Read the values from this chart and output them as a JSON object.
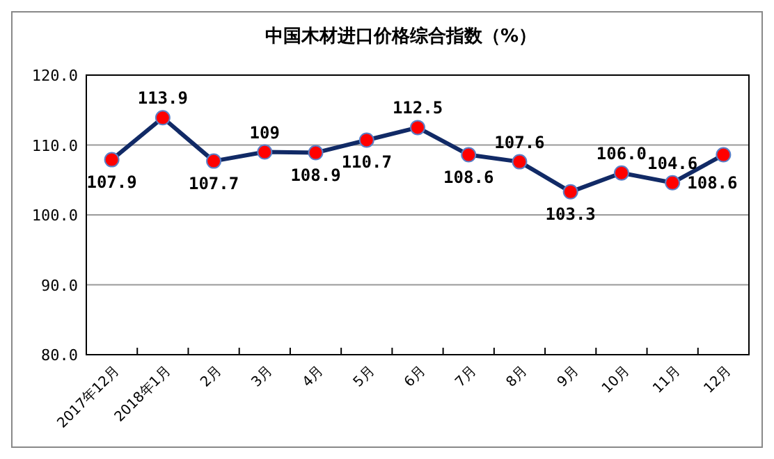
{
  "chart_data": {
    "type": "line",
    "title": "中国木材进口价格综合指数（%）",
    "categories": [
      "2017年12月",
      "2018年1月",
      "2月",
      "3月",
      "4月",
      "5月",
      "6月",
      "7月",
      "8月",
      "9月",
      "10月",
      "11月",
      "12月"
    ],
    "series": [
      {
        "color": "#112a66",
        "values": [
          107.9,
          113.9,
          107.7,
          109,
          108.9,
          110.7,
          112.5,
          108.6,
          107.6,
          103.3,
          106.0,
          104.6,
          108.6
        ],
        "value_labels": [
          "107.9",
          "113.9",
          "107.7",
          "109",
          "108.9",
          "110.7",
          "112.5",
          "108.6",
          "107.6",
          "103.3",
          "106.0",
          "104.6",
          "108.6"
        ]
      }
    ],
    "ylim": [
      80,
      120
    ],
    "yticks": [
      {
        "value": 80,
        "label": "80.0"
      },
      {
        "value": 90,
        "label": "90.0"
      },
      {
        "value": 100,
        "label": "100.0"
      },
      {
        "value": 110,
        "label": "110.0"
      },
      {
        "value": 120,
        "label": "120.0"
      }
    ],
    "grid": "y",
    "marker": "circle",
    "line_style": "solid"
  }
}
